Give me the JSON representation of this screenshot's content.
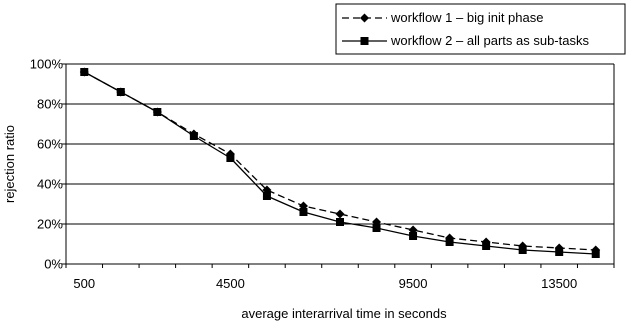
{
  "chart_data": {
    "type": "line",
    "title": "",
    "xlabel": "average interarrival time in seconds",
    "ylabel": "rejection ratio",
    "x_tick_labels": [
      "500",
      "4500",
      "9500",
      "13500"
    ],
    "x_tick_values": [
      500,
      4500,
      9500,
      13500
    ],
    "y_tick_labels": [
      "0%",
      "20%",
      "40%",
      "60%",
      "80%",
      "100%"
    ],
    "y_tick_values": [
      0,
      20,
      40,
      60,
      80,
      100
    ],
    "ylim": [
      0,
      100
    ],
    "grid": "horizontal",
    "legend_position": "top-right",
    "x": [
      500,
      1500,
      2500,
      3500,
      4500,
      5500,
      6500,
      7500,
      8500,
      9500,
      10500,
      11500,
      12500,
      13500,
      14500
    ],
    "series": [
      {
        "name": "workflow 1 – big init phase",
        "line_style": "dashed",
        "marker": "diamond",
        "color": "#000000",
        "values": [
          96,
          86,
          76,
          65,
          55,
          37,
          29,
          25,
          21,
          17,
          13,
          11,
          9,
          8,
          7
        ]
      },
      {
        "name": "workflow 2 – all parts as sub-tasks",
        "line_style": "solid",
        "marker": "square",
        "color": "#000000",
        "values": [
          96,
          86,
          76,
          64,
          53,
          34,
          26,
          21,
          18,
          14,
          11,
          9,
          7,
          6,
          5
        ]
      }
    ]
  }
}
